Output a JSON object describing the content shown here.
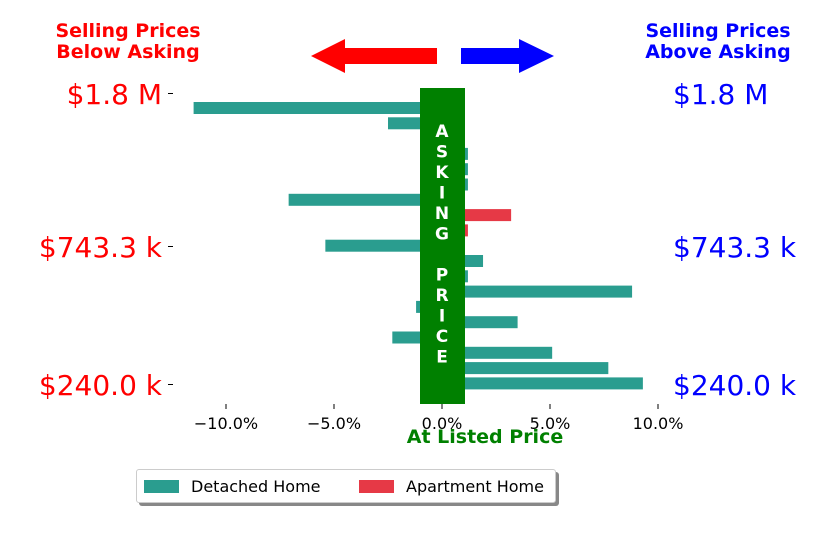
{
  "header": {
    "left_line1": "Selling Prices",
    "left_line2": "Below Asking",
    "right_line1": "Selling Prices",
    "right_line2": "Above Asking"
  },
  "price_labels": {
    "top": "$1.8 M",
    "middle": "$743.3 k",
    "bottom": "$240.0 k"
  },
  "asking_price_letters": [
    "A",
    "S",
    "K",
    "I",
    "N",
    "G",
    " ",
    "P",
    "R",
    "I",
    "C",
    "E"
  ],
  "colors": {
    "below": "#ff0000",
    "above": "#0000ff",
    "asking_band": "#008000",
    "detached": "#2a9d8f",
    "apartment": "#e63946"
  },
  "legend": {
    "detached": "Detached Home",
    "apartment": "Apartment Home"
  },
  "chart_data": {
    "type": "bar",
    "orientation": "horizontal",
    "xlabel": "At Listed Price",
    "xlim": [
      -12,
      12
    ],
    "x_ticks": [
      "−10.0%",
      "−5.0%",
      "0.0%",
      "5.0%",
      "10.0%"
    ],
    "x_tick_values": [
      -10,
      -5,
      0,
      5,
      10
    ],
    "series": [
      {
        "name": "Detached Home",
        "points": [
          {
            "row": 0,
            "value": -11.5
          },
          {
            "row": 1,
            "value": -2.5
          },
          {
            "row": 2,
            "value": -1.0
          },
          {
            "row": 3,
            "value": 1.2
          },
          {
            "row": 4,
            "value": 1.2
          },
          {
            "row": 5,
            "value": 1.2
          },
          {
            "row": 6,
            "value": -7.1
          },
          {
            "row": 9,
            "value": -5.4
          },
          {
            "row": 10,
            "value": 1.9
          },
          {
            "row": 11,
            "value": 1.2
          },
          {
            "row": 12,
            "value": 8.8
          },
          {
            "row": 13,
            "value": -1.2
          },
          {
            "row": 14,
            "value": 3.5
          },
          {
            "row": 15,
            "value": -2.3
          },
          {
            "row": 16,
            "value": 5.1
          },
          {
            "row": 17,
            "value": 7.7
          },
          {
            "row": 18,
            "value": 9.3
          }
        ]
      },
      {
        "name": "Apartment Home",
        "points": [
          {
            "row": 7,
            "value": 3.2
          },
          {
            "row": 8,
            "value": 1.2
          }
        ]
      }
    ]
  }
}
